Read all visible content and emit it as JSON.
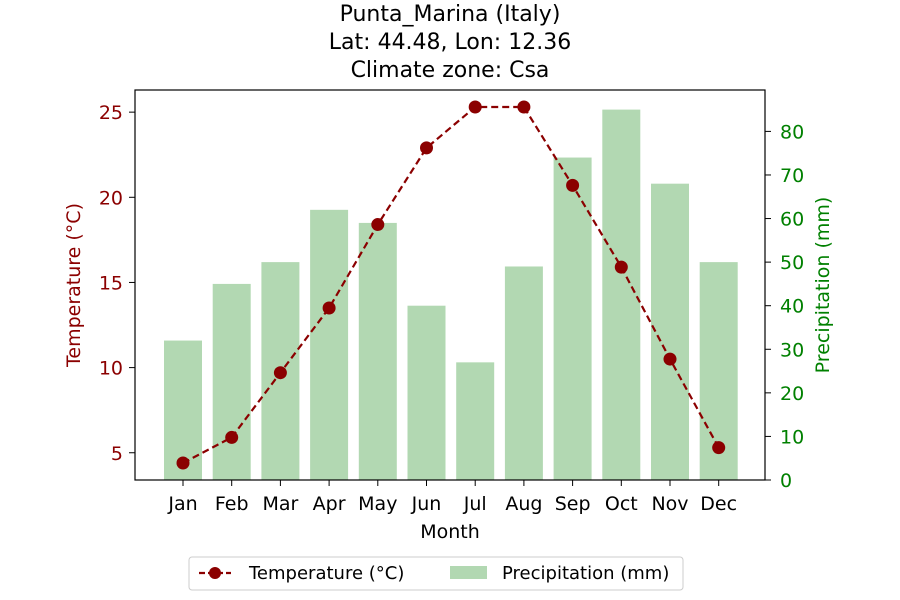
{
  "chart_data": {
    "type": "bar+line",
    "title": [
      "Punta_Marina (Italy)",
      "Lat: 44.48, Lon: 12.36",
      "Climate zone: Csa"
    ],
    "xlabel": "Month",
    "ylabel_left": "Temperature (°C)",
    "ylabel_right": "Precipitation (mm)",
    "categories": [
      "Jan",
      "Feb",
      "Mar",
      "Apr",
      "May",
      "Jun",
      "Jul",
      "Aug",
      "Sep",
      "Oct",
      "Nov",
      "Dec"
    ],
    "series": [
      {
        "name": "Temperature (°C)",
        "type": "line",
        "axis": "left",
        "color": "#8b0000",
        "values": [
          4.4,
          5.9,
          9.7,
          13.5,
          18.4,
          22.9,
          25.3,
          25.3,
          20.7,
          15.9,
          10.5,
          5.3
        ]
      },
      {
        "name": "Precipitation (mm)",
        "type": "bar",
        "axis": "right",
        "color": "#b2d8b2",
        "values": [
          32,
          45,
          50,
          62,
          59,
          40,
          27,
          49,
          74,
          85,
          68,
          50
        ]
      }
    ],
    "ylim_left": [
      3.4,
      26.3
    ],
    "yticks_left": [
      5,
      10,
      15,
      20,
      25
    ],
    "ylim_right": [
      0,
      89.5
    ],
    "yticks_right": [
      0,
      10,
      20,
      30,
      40,
      50,
      60,
      70,
      80
    ],
    "left_axis_color": "#8b0000",
    "right_axis_color": "#008000",
    "grid": false,
    "legend_position": "bottom-center"
  }
}
